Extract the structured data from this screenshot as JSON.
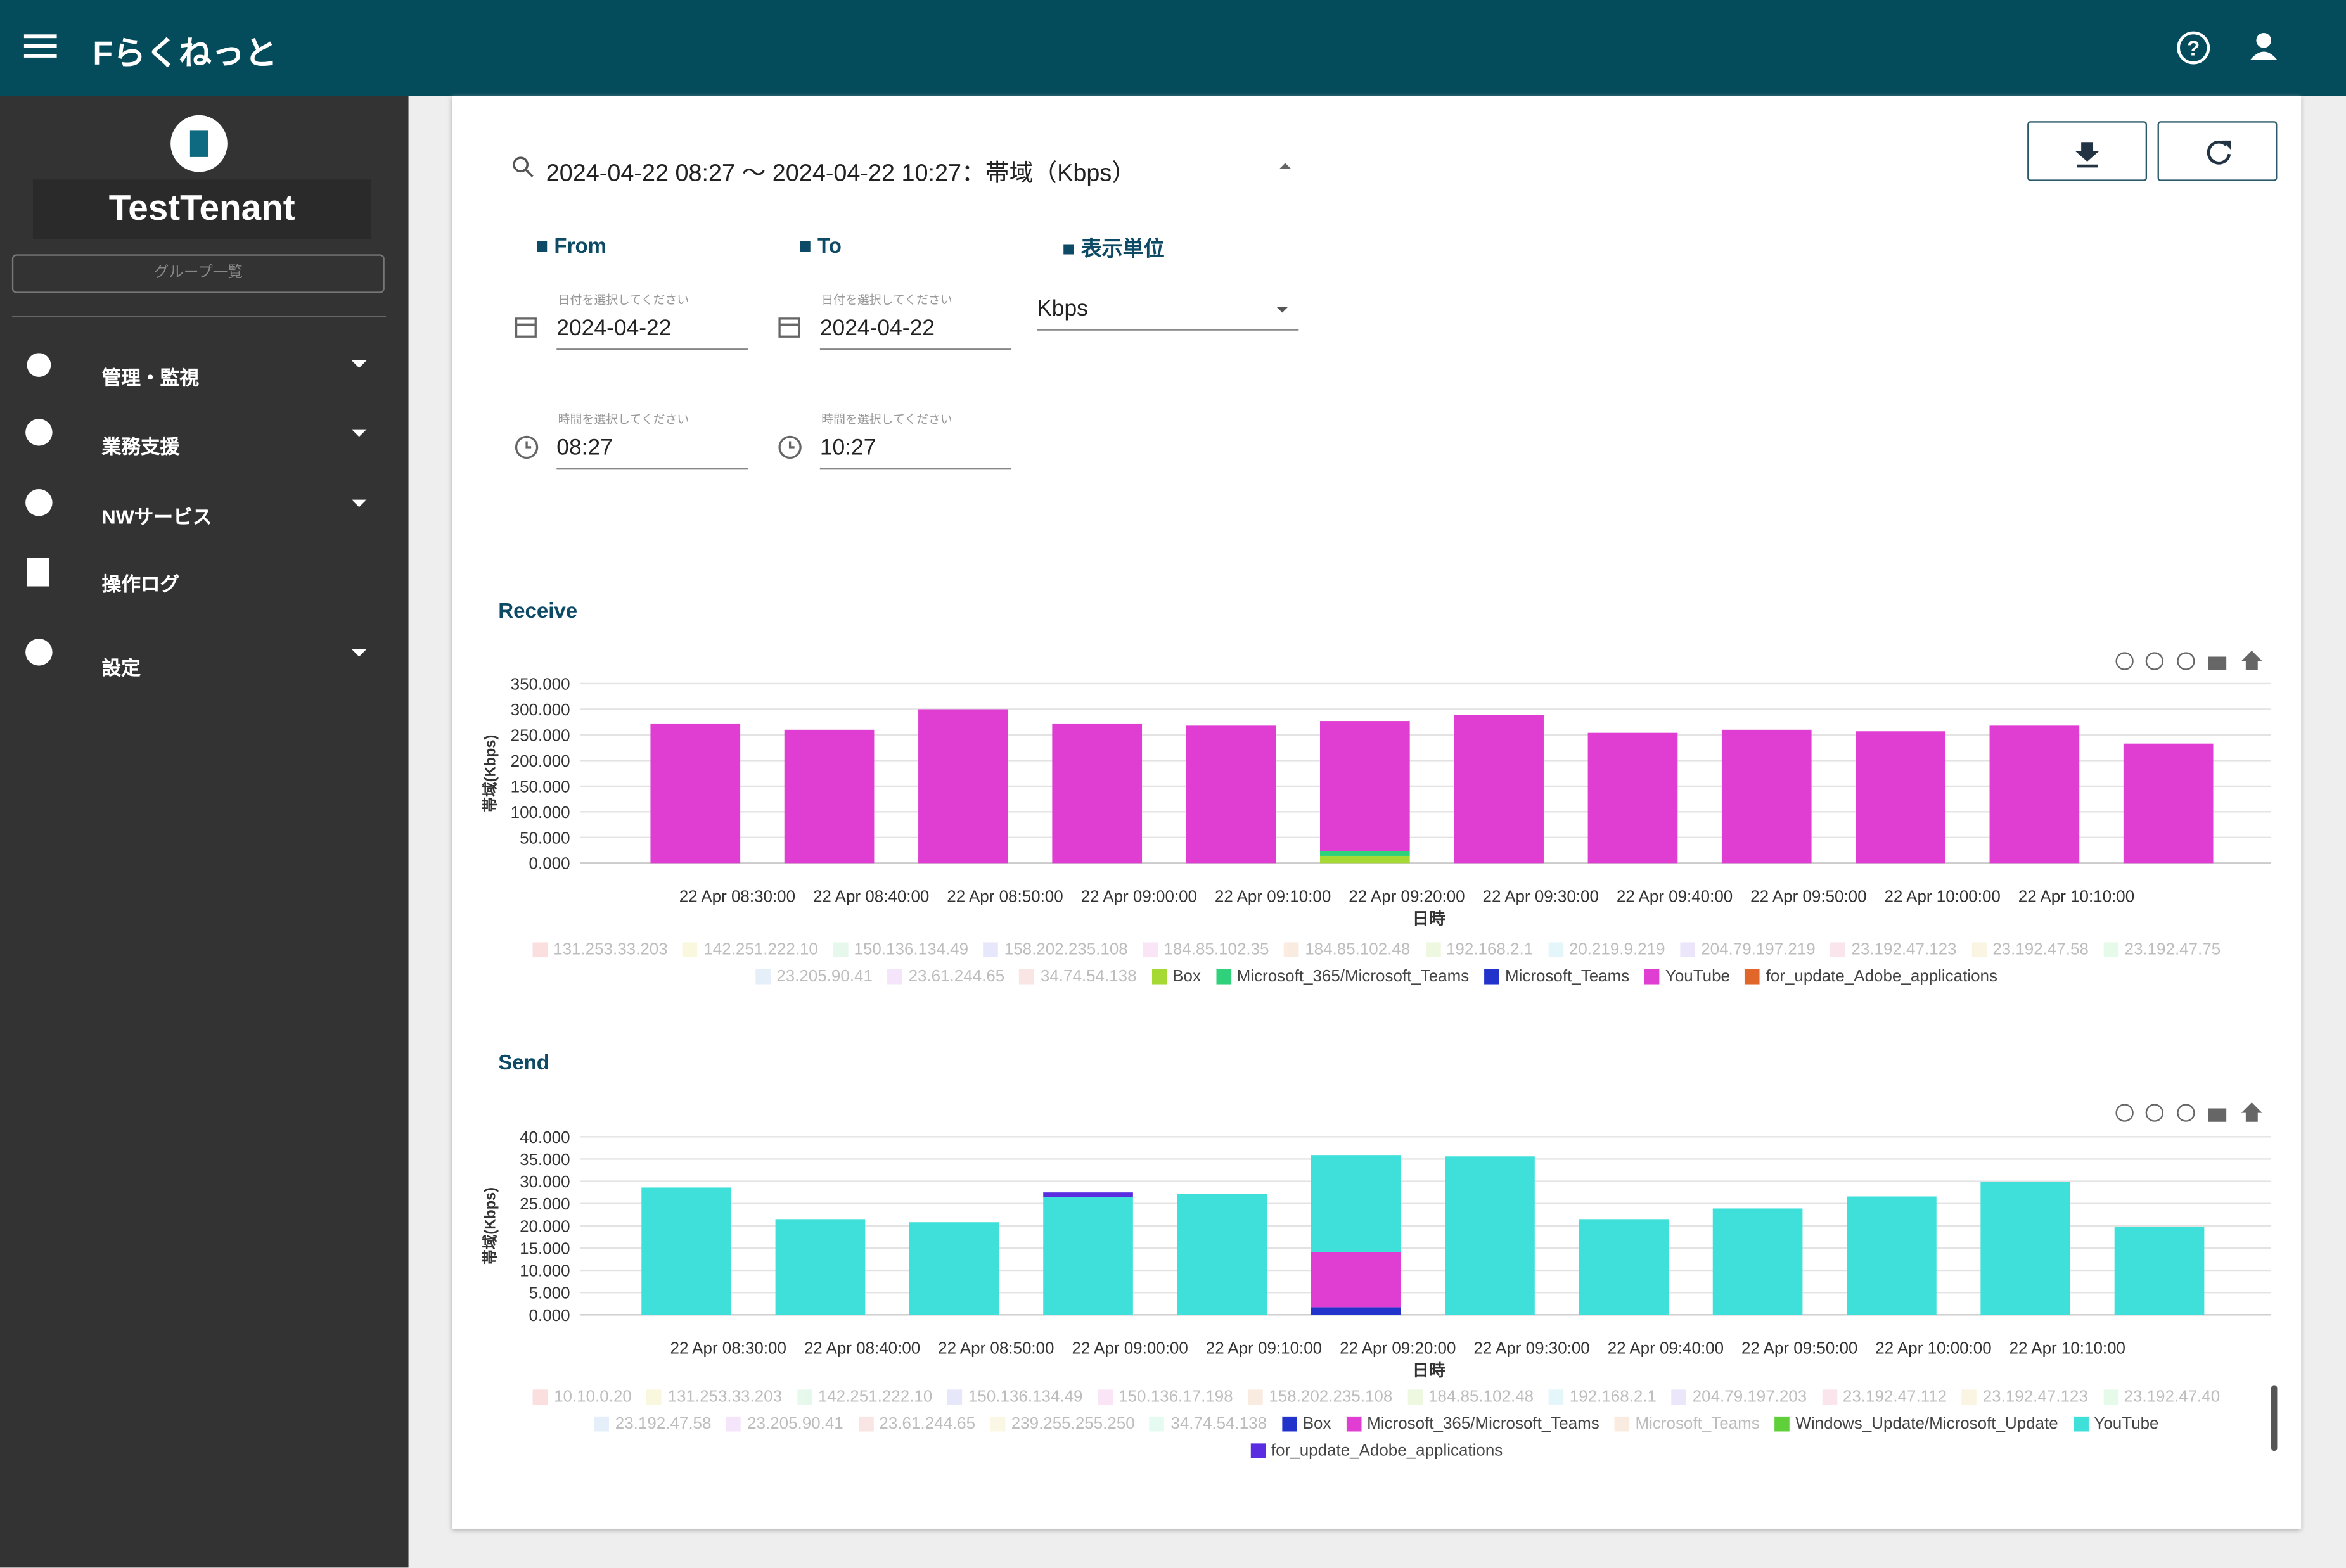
{
  "header": {
    "title": "Fらくねっと"
  },
  "sidebar": {
    "tenant": "TestTenant",
    "group": "グループ一覧",
    "menu": [
      "管理・監視",
      "業務支援",
      "NWサービス",
      "操作ログ",
      "設定"
    ]
  },
  "filter": {
    "summary": "2024-04-22 08:27 ～ 2024-04-22 10:27：帯域（Kbps）",
    "from": "From",
    "to": "To",
    "unit_label": "表示単位",
    "date_hint": "日付を選択してください",
    "time_hint": "時間を選択してください",
    "from_date": "2024-04-22",
    "to_date": "2024-04-22",
    "from_time": "08:27",
    "to_time": "10:27",
    "unit": "Kbps"
  },
  "chart_data": [
    {
      "type": "bar",
      "stacked": true,
      "title": "Receive",
      "ylabel": "帯域(Kbps)",
      "xlabel": "日時",
      "categories": [
        "22 Apr 08:30:00",
        "22 Apr 08:40:00",
        "22 Apr 08:50:00",
        "22 Apr 09:00:00",
        "22 Apr 09:10:00",
        "22 Apr 09:20:00",
        "22 Apr 09:30:00",
        "22 Apr 09:40:00",
        "22 Apr 09:50:00",
        "22 Apr 10:00:00",
        "22 Apr 10:10:00",
        null
      ],
      "ylim": [
        0,
        350000
      ],
      "yticks": [
        {
          "value": 0,
          "label": "0.000"
        },
        {
          "value": 50000,
          "label": "50.000"
        },
        {
          "value": 100000,
          "label": "100.000"
        },
        {
          "value": 150000,
          "label": "150.000"
        },
        {
          "value": 200000,
          "label": "200.000"
        },
        {
          "value": 250000,
          "label": "250.000"
        },
        {
          "value": 300000,
          "label": "300.000"
        },
        {
          "value": 350000,
          "label": "350.000"
        }
      ],
      "grid": true,
      "series": [
        {
          "name": "131.253.33.203",
          "color": "#f4a3a3",
          "hidden": true
        },
        {
          "name": "142.251.222.10",
          "color": "#f3e9a6",
          "hidden": true
        },
        {
          "name": "150.136.134.49",
          "color": "#b9ecc9",
          "hidden": true
        },
        {
          "name": "158.202.235.108",
          "color": "#b8bdf2",
          "hidden": true
        },
        {
          "name": "184.85.102.35",
          "color": "#f2b6ea",
          "hidden": true
        },
        {
          "name": "184.85.102.48",
          "color": "#f3c7a7",
          "hidden": true
        },
        {
          "name": "192.168.2.1",
          "color": "#cfeaa6",
          "hidden": true
        },
        {
          "name": "20.219.9.219",
          "color": "#b7e6f2",
          "hidden": true
        },
        {
          "name": "204.79.197.219",
          "color": "#c9b7f2",
          "hidden": true
        },
        {
          "name": "23.192.47.123",
          "color": "#f2b7c9",
          "hidden": true
        },
        {
          "name": "23.192.47.58",
          "color": "#f2e2b0",
          "hidden": true
        },
        {
          "name": "23.192.47.75",
          "color": "#b7f2c0",
          "hidden": true
        },
        {
          "name": "23.205.90.41",
          "color": "#b7d3f2",
          "hidden": true
        },
        {
          "name": "23.61.244.65",
          "color": "#e2b7f2",
          "hidden": true
        },
        {
          "name": "34.74.54.138",
          "color": "#f2b7b7",
          "hidden": true
        },
        {
          "name": "Box",
          "color": "#a6d933",
          "values": [
            0,
            0,
            0,
            0,
            0,
            14000,
            0,
            0,
            0,
            0,
            0,
            0
          ]
        },
        {
          "name": "Microsoft_365/Microsoft_Teams",
          "color": "#2fd17a",
          "values": [
            0,
            0,
            0,
            0,
            0,
            9000,
            0,
            0,
            0,
            0,
            0,
            0
          ]
        },
        {
          "name": "Microsoft_Teams",
          "color": "#2233cc",
          "values": [
            0,
            0,
            0,
            0,
            0,
            0,
            0,
            0,
            0,
            0,
            0,
            0
          ]
        },
        {
          "name": "YouTube",
          "color": "#e03ed2",
          "values": [
            271000,
            260000,
            300000,
            271000,
            268000,
            254000,
            289000,
            254000,
            260000,
            257000,
            268000,
            233000
          ]
        },
        {
          "name": "for_update_Adobe_applications",
          "color": "#e0662a",
          "values": [
            0,
            0,
            0,
            0,
            0,
            0,
            0,
            0,
            0,
            0,
            0,
            0
          ]
        }
      ]
    },
    {
      "type": "bar",
      "stacked": true,
      "title": "Send",
      "ylabel": "帯域(Kbps)",
      "xlabel": "日時",
      "categories": [
        "22 Apr 08:30:00",
        "22 Apr 08:40:00",
        "22 Apr 08:50:00",
        "22 Apr 09:00:00",
        "22 Apr 09:10:00",
        "22 Apr 09:20:00",
        "22 Apr 09:30:00",
        "22 Apr 09:40:00",
        "22 Apr 09:50:00",
        "22 Apr 10:00:00",
        "22 Apr 10:10:00",
        null
      ],
      "ylim": [
        0,
        40000
      ],
      "yticks": [
        {
          "value": 0,
          "label": "0.000"
        },
        {
          "value": 5000,
          "label": "5.000"
        },
        {
          "value": 10000,
          "label": "10.000"
        },
        {
          "value": 15000,
          "label": "15.000"
        },
        {
          "value": 20000,
          "label": "20.000"
        },
        {
          "value": 25000,
          "label": "25.000"
        },
        {
          "value": 30000,
          "label": "30.000"
        },
        {
          "value": 35000,
          "label": "35.000"
        },
        {
          "value": 40000,
          "label": "40.000"
        }
      ],
      "grid": true,
      "series": [
        {
          "name": "10.10.0.20",
          "color": "#f4a3a3",
          "hidden": true
        },
        {
          "name": "131.253.33.203",
          "color": "#f3e9a6",
          "hidden": true
        },
        {
          "name": "142.251.222.10",
          "color": "#b9ecc9",
          "hidden": true
        },
        {
          "name": "150.136.134.49",
          "color": "#b8bdf2",
          "hidden": true
        },
        {
          "name": "150.136.17.198",
          "color": "#f2b6ea",
          "hidden": true
        },
        {
          "name": "158.202.235.108",
          "color": "#f3c7a7",
          "hidden": true
        },
        {
          "name": "184.85.102.48",
          "color": "#cfeaa6",
          "hidden": true
        },
        {
          "name": "192.168.2.1",
          "color": "#b7e6f2",
          "hidden": true
        },
        {
          "name": "204.79.197.203",
          "color": "#c9b7f2",
          "hidden": true
        },
        {
          "name": "23.192.47.112",
          "color": "#f2b7c9",
          "hidden": true
        },
        {
          "name": "23.192.47.123",
          "color": "#f2e2b0",
          "hidden": true
        },
        {
          "name": "23.192.47.40",
          "color": "#b7f2c0",
          "hidden": true
        },
        {
          "name": "23.192.47.58",
          "color": "#b7d3f2",
          "hidden": true
        },
        {
          "name": "23.205.90.41",
          "color": "#e2b7f2",
          "hidden": true
        },
        {
          "name": "23.61.244.65",
          "color": "#f2b7b7",
          "hidden": true
        },
        {
          "name": "239.255.255.250",
          "color": "#f2ecb7",
          "hidden": true
        },
        {
          "name": "34.74.54.138",
          "color": "#b7f2d8",
          "hidden": true
        },
        {
          "name": "Box",
          "color": "#2233cc",
          "values": [
            0,
            0,
            0,
            0,
            0,
            1700,
            0,
            0,
            0,
            0,
            0,
            0
          ]
        },
        {
          "name": "Microsoft_365/Microsoft_Teams",
          "color": "#e03ed2",
          "values": [
            0,
            0,
            0,
            0,
            0,
            12400,
            0,
            0,
            0,
            0,
            0,
            0
          ]
        },
        {
          "name": "Microsoft_Teams",
          "color": "#f3c7a7",
          "hidden": true
        },
        {
          "name": "Windows_Update/Microsoft_Update",
          "color": "#5fcf3a",
          "values": [
            0,
            0,
            0,
            0,
            0,
            0,
            0,
            0,
            0,
            0,
            0,
            0
          ]
        },
        {
          "name": "YouTube",
          "color": "#40e0da",
          "values": [
            28600,
            21500,
            20800,
            26500,
            27200,
            21800,
            35600,
            21500,
            23900,
            26600,
            29900,
            19800
          ]
        },
        {
          "name": "for_update_Adobe_applications",
          "color": "#5a2ee0",
          "values": [
            0,
            0,
            0,
            1000,
            0,
            0,
            0,
            0,
            0,
            0,
            0,
            0
          ]
        }
      ]
    }
  ]
}
